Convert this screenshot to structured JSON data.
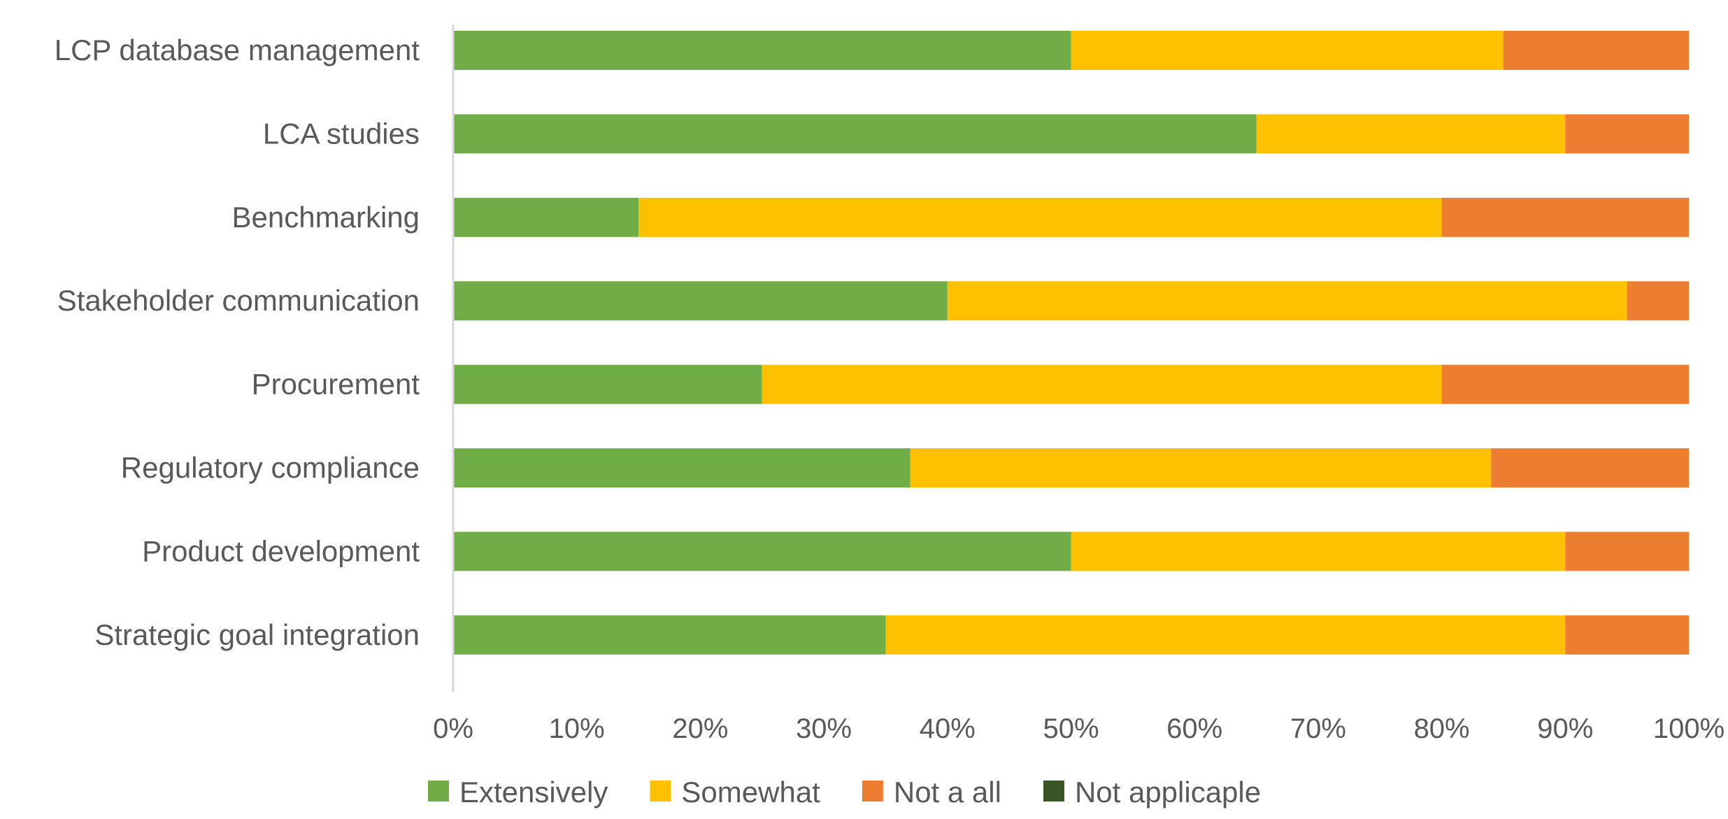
{
  "chart_data": {
    "type": "bar",
    "orientation": "horizontal",
    "stacked": "percent",
    "categories": [
      "LCP database management",
      "LCA studies",
      "Benchmarking",
      "Stakeholder communication",
      "Procurement",
      "Regulatory compliance",
      "Product development",
      "Strategic goal integration"
    ],
    "series": [
      {
        "name": "Extensively",
        "color": "#70AD47",
        "values": [
          50,
          65,
          15,
          40,
          25,
          37,
          50,
          35
        ]
      },
      {
        "name": "Somewhat",
        "color": "#FFC000",
        "values": [
          35,
          25,
          65,
          55,
          55,
          47,
          40,
          55
        ]
      },
      {
        "name": "Not a all",
        "color": "#ED7D31",
        "values": [
          15,
          10,
          20,
          5,
          20,
          16,
          10,
          10
        ]
      },
      {
        "name": "Not applicaple",
        "color": "#375623",
        "values": [
          0,
          0,
          0,
          0,
          0,
          0,
          0,
          0
        ]
      }
    ],
    "x_ticks": [
      "0%",
      "10%",
      "20%",
      "30%",
      "40%",
      "50%",
      "60%",
      "70%",
      "80%",
      "90%",
      "100%"
    ],
    "xlim": [
      0,
      100
    ],
    "grid": false,
    "legend_position": "bottom"
  }
}
